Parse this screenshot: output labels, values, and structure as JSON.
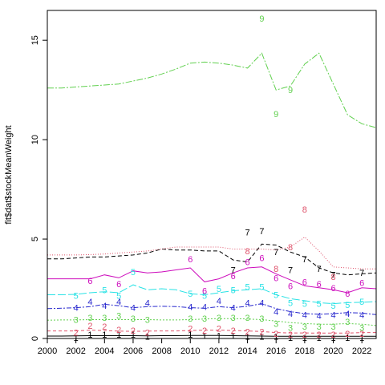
{
  "chart_data": {
    "type": "line",
    "title": "",
    "xlabel": "",
    "ylabel": "fit$dat$stockMeanWeight",
    "xlim": [
      2000,
      2023
    ],
    "ylim": [
      0,
      16.5
    ],
    "x_ticks": [
      2000,
      2002,
      2004,
      2006,
      2008,
      2010,
      2012,
      2014,
      2016,
      2018,
      2020,
      2022
    ],
    "x_tick_labels": [
      "2000",
      "2002",
      "2004",
      "2006",
      "2008",
      "2010",
      "2012",
      "2014",
      "2016",
      "2018",
      "2020",
      "2022"
    ],
    "y_ticks": [
      0,
      5,
      10,
      15
    ],
    "y_tick_labels": [
      "0",
      "5",
      "10",
      "15"
    ],
    "grid": false,
    "legend": "none",
    "years": [
      2000,
      2001,
      2002,
      2003,
      2004,
      2005,
      2006,
      2007,
      2008,
      2009,
      2010,
      2011,
      2012,
      2013,
      2014,
      2015,
      2016,
      2017,
      2018,
      2019,
      2020,
      2021,
      2022,
      2023
    ],
    "series": [
      {
        "color": "#000000",
        "dash": "",
        "values": [
          0.12,
          0.12,
          0.13,
          0.14,
          0.14,
          0.14,
          0.14,
          0.13,
          0.14,
          0.14,
          0.15,
          0.15,
          0.15,
          0.14,
          0.13,
          0.12,
          0.11,
          0.11,
          0.11,
          0.11,
          0.11,
          0.11,
          0.11,
          0.11
        ],
        "points": [
          {
            "label": "1",
            "x": 2002,
            "y": 0.05
          },
          {
            "label": "1",
            "x": 2003,
            "y": 0.2
          },
          {
            "label": "1",
            "x": 2004,
            "y": 0.2
          },
          {
            "label": "1",
            "x": 2005,
            "y": 0.2
          },
          {
            "label": "1",
            "x": 2006,
            "y": 0.2
          },
          {
            "label": "1",
            "x": 2007,
            "y": 0.1
          },
          {
            "label": "1",
            "x": 2010,
            "y": 0.2
          },
          {
            "label": "1",
            "x": 2011,
            "y": 0.15
          },
          {
            "label": "1",
            "x": 2012,
            "y": 0.15
          },
          {
            "label": "1",
            "x": 2013,
            "y": 0.15
          },
          {
            "label": "1",
            "x": 2014,
            "y": 0.1
          },
          {
            "label": "1",
            "x": 2015,
            "y": 0.1
          },
          {
            "label": "1",
            "x": 2016,
            "y": 0.1
          },
          {
            "label": "1",
            "x": 2017,
            "y": 0.05
          },
          {
            "label": "1",
            "x": 2018,
            "y": 0.05
          },
          {
            "label": "1",
            "x": 2019,
            "y": 0.05
          },
          {
            "label": "1",
            "x": 2020,
            "y": 0.05
          },
          {
            "label": "1",
            "x": 2021,
            "y": 0.05
          },
          {
            "label": "1",
            "x": 2022,
            "y": 0.05
          }
        ]
      },
      {
        "color": "#df536b",
        "dash": "4,3",
        "values": [
          0.38,
          0.38,
          0.38,
          0.42,
          0.4,
          0.37,
          0.36,
          0.37,
          0.38,
          0.38,
          0.4,
          0.42,
          0.42,
          0.4,
          0.38,
          0.35,
          0.3,
          0.28,
          0.28,
          0.27,
          0.27,
          0.27,
          0.3,
          0.3
        ],
        "points": [
          {
            "label": "2",
            "x": 2002,
            "y": 0.3
          },
          {
            "label": "2",
            "x": 2003,
            "y": 0.65
          },
          {
            "label": "2",
            "x": 2004,
            "y": 0.6
          },
          {
            "label": "2",
            "x": 2005,
            "y": 0.45
          },
          {
            "label": "2",
            "x": 2006,
            "y": 0.4
          },
          {
            "label": "2",
            "x": 2007,
            "y": 0.3
          },
          {
            "label": "2",
            "x": 2010,
            "y": 0.5
          },
          {
            "label": "2",
            "x": 2011,
            "y": 0.4
          },
          {
            "label": "2",
            "x": 2012,
            "y": 0.5
          },
          {
            "label": "2",
            "x": 2013,
            "y": 0.4
          },
          {
            "label": "2",
            "x": 2014,
            "y": 0.35
          },
          {
            "label": "2",
            "x": 2015,
            "y": 0.35
          },
          {
            "label": "2",
            "x": 2016,
            "y": 0.25
          },
          {
            "label": "2",
            "x": 2017,
            "y": 0.2
          },
          {
            "label": "2",
            "x": 2018,
            "y": 0.2
          },
          {
            "label": "2",
            "x": 2019,
            "y": 0.2
          },
          {
            "label": "2",
            "x": 2020,
            "y": 0.2
          },
          {
            "label": "2",
            "x": 2021,
            "y": 0.25
          },
          {
            "label": "2",
            "x": 2022,
            "y": 0.25
          }
        ]
      },
      {
        "color": "#61d04f",
        "dash": "2,2",
        "values": [
          0.92,
          0.93,
          0.93,
          0.95,
          0.95,
          0.95,
          0.95,
          0.95,
          0.93,
          0.93,
          0.95,
          0.98,
          1.0,
          1.0,
          0.98,
          0.95,
          0.88,
          0.8,
          0.75,
          0.72,
          0.72,
          0.75,
          0.72,
          0.65
        ],
        "points": [
          {
            "label": "3",
            "x": 2002,
            "y": 0.95
          },
          {
            "label": "3",
            "x": 2003,
            "y": 1.05
          },
          {
            "label": "3",
            "x": 2004,
            "y": 1.05
          },
          {
            "label": "3",
            "x": 2005,
            "y": 1.15
          },
          {
            "label": "3",
            "x": 2006,
            "y": 1.0
          },
          {
            "label": "3",
            "x": 2007,
            "y": 0.95
          },
          {
            "label": "3",
            "x": 2010,
            "y": 1.0
          },
          {
            "label": "3",
            "x": 2011,
            "y": 1.0
          },
          {
            "label": "3",
            "x": 2012,
            "y": 1.05
          },
          {
            "label": "3",
            "x": 2013,
            "y": 1.05
          },
          {
            "label": "3",
            "x": 2014,
            "y": 1.05
          },
          {
            "label": "3",
            "x": 2015,
            "y": 1.0
          },
          {
            "label": "3",
            "x": 2016,
            "y": 0.75
          },
          {
            "label": "3",
            "x": 2017,
            "y": 0.55
          },
          {
            "label": "3",
            "x": 2018,
            "y": 0.6
          },
          {
            "label": "3",
            "x": 2019,
            "y": 0.6
          },
          {
            "label": "3",
            "x": 2020,
            "y": 0.6
          },
          {
            "label": "3",
            "x": 2021,
            "y": 0.85
          },
          {
            "label": "3",
            "x": 2022,
            "y": 0.55
          }
        ]
      },
      {
        "color": "#2828ce",
        "dash": "6,2,2,2",
        "values": [
          1.5,
          1.52,
          1.55,
          1.6,
          1.72,
          1.65,
          1.55,
          1.6,
          1.62,
          1.6,
          1.55,
          1.52,
          1.6,
          1.55,
          1.62,
          1.75,
          1.5,
          1.35,
          1.25,
          1.22,
          1.25,
          1.3,
          1.28,
          1.2
        ],
        "points": [
          {
            "label": "4",
            "x": 2002,
            "y": 1.55
          },
          {
            "label": "4",
            "x": 2003,
            "y": 1.85
          },
          {
            "label": "4",
            "x": 2004,
            "y": 1.65
          },
          {
            "label": "4",
            "x": 2005,
            "y": 1.85
          },
          {
            "label": "4",
            "x": 2006,
            "y": 1.55
          },
          {
            "label": "4",
            "x": 2007,
            "y": 1.8
          },
          {
            "label": "4",
            "x": 2010,
            "y": 1.6
          },
          {
            "label": "4",
            "x": 2011,
            "y": 1.6
          },
          {
            "label": "4",
            "x": 2012,
            "y": 1.9
          },
          {
            "label": "4",
            "x": 2013,
            "y": 1.55
          },
          {
            "label": "4",
            "x": 2014,
            "y": 1.8
          },
          {
            "label": "4",
            "x": 2015,
            "y": 1.8
          },
          {
            "label": "4",
            "x": 2016,
            "y": 1.35
          },
          {
            "label": "4",
            "x": 2017,
            "y": 1.25
          },
          {
            "label": "4",
            "x": 2018,
            "y": 1.2
          },
          {
            "label": "4",
            "x": 2019,
            "y": 1.15
          },
          {
            "label": "4",
            "x": 2020,
            "y": 1.2
          },
          {
            "label": "4",
            "x": 2021,
            "y": 1.25
          },
          {
            "label": "4",
            "x": 2022,
            "y": 1.2
          }
        ]
      },
      {
        "color": "#28e2e5",
        "dash": "10,3",
        "values": [
          2.2,
          2.2,
          2.22,
          2.3,
          2.35,
          2.3,
          2.7,
          2.45,
          2.5,
          2.45,
          2.25,
          2.2,
          2.3,
          2.4,
          2.45,
          2.5,
          2.2,
          2.0,
          1.9,
          1.8,
          1.75,
          1.8,
          1.82,
          1.85
        ],
        "points": [
          {
            "label": "5",
            "x": 2002,
            "y": 2.15
          },
          {
            "label": "5",
            "x": 2004,
            "y": 2.45
          },
          {
            "label": "5",
            "x": 2005,
            "y": 2.15
          },
          {
            "label": "5",
            "x": 2006,
            "y": 3.35
          },
          {
            "label": "5",
            "x": 2010,
            "y": 2.25
          },
          {
            "label": "5",
            "x": 2011,
            "y": 2.15
          },
          {
            "label": "5",
            "x": 2012,
            "y": 2.5
          },
          {
            "label": "5",
            "x": 2013,
            "y": 2.45
          },
          {
            "label": "5",
            "x": 2014,
            "y": 2.6
          },
          {
            "label": "5",
            "x": 2015,
            "y": 2.6
          },
          {
            "label": "5",
            "x": 2016,
            "y": 2.2
          },
          {
            "label": "5",
            "x": 2017,
            "y": 1.8
          },
          {
            "label": "5",
            "x": 2018,
            "y": 1.75
          },
          {
            "label": "5",
            "x": 2019,
            "y": 1.75
          },
          {
            "label": "5",
            "x": 2020,
            "y": 1.65
          },
          {
            "label": "5",
            "x": 2021,
            "y": 1.7
          },
          {
            "label": "5",
            "x": 2022,
            "y": 1.85
          }
        ]
      },
      {
        "color": "#cd0bbc",
        "dash": "",
        "values": [
          3.0,
          3.0,
          3.0,
          3.0,
          3.2,
          3.05,
          3.4,
          3.3,
          3.35,
          3.45,
          3.55,
          2.85,
          3.0,
          3.3,
          3.55,
          3.6,
          3.25,
          2.95,
          2.65,
          2.55,
          2.45,
          2.3,
          2.55,
          2.5
        ],
        "points": [
          {
            "label": "6",
            "x": 2003,
            "y": 2.9
          },
          {
            "label": "6",
            "x": 2005,
            "y": 2.75
          },
          {
            "label": "6",
            "x": 2010,
            "y": 4.0
          },
          {
            "label": "6",
            "x": 2011,
            "y": 2.4
          },
          {
            "label": "6",
            "x": 2013,
            "y": 3.15
          },
          {
            "label": "6",
            "x": 2014,
            "y": 3.85
          },
          {
            "label": "6",
            "x": 2015,
            "y": 4.05
          },
          {
            "label": "6",
            "x": 2016,
            "y": 3.05
          },
          {
            "label": "6",
            "x": 2017,
            "y": 2.65
          },
          {
            "label": "6",
            "x": 2018,
            "y": 2.85
          },
          {
            "label": "6",
            "x": 2019,
            "y": 2.75
          },
          {
            "label": "6",
            "x": 2020,
            "y": 2.55
          },
          {
            "label": "6",
            "x": 2021,
            "y": 2.25
          },
          {
            "label": "6",
            "x": 2022,
            "y": 2.8
          }
        ]
      },
      {
        "color": "#000000",
        "dash": "5,3",
        "values": [
          4.0,
          4.0,
          4.05,
          4.1,
          4.1,
          4.15,
          4.2,
          4.3,
          4.5,
          4.45,
          4.45,
          4.4,
          4.4,
          3.95,
          3.85,
          4.75,
          4.7,
          4.35,
          4.1,
          3.55,
          3.3,
          3.2,
          3.25,
          3.3
        ],
        "points": [
          {
            "label": "7",
            "x": 2013,
            "y": 3.45
          },
          {
            "label": "7",
            "x": 2014,
            "y": 5.35
          },
          {
            "label": "7",
            "x": 2015,
            "y": 5.4
          },
          {
            "label": "7",
            "x": 2016,
            "y": 4.35
          },
          {
            "label": "7",
            "x": 2017,
            "y": 3.45
          },
          {
            "label": "7",
            "x": 2018,
            "y": 4.0
          },
          {
            "label": "7",
            "x": 2019,
            "y": 3.5
          },
          {
            "label": "7",
            "x": 2020,
            "y": 3.2
          },
          {
            "label": "7",
            "x": 2022,
            "y": 3.3
          }
        ]
      },
      {
        "color": "#df536b",
        "dash": "1,2",
        "values": [
          4.2,
          4.2,
          4.2,
          4.22,
          4.25,
          4.3,
          4.35,
          4.4,
          4.5,
          4.6,
          4.6,
          4.6,
          4.6,
          4.5,
          4.5,
          4.5,
          4.45,
          4.6,
          5.1,
          4.4,
          3.6,
          3.55,
          3.5,
          3.5
        ],
        "points": [
          {
            "label": "8",
            "x": 2014,
            "y": 4.4
          },
          {
            "label": "8",
            "x": 2016,
            "y": 3.5
          },
          {
            "label": "8",
            "x": 2017,
            "y": 4.6
          },
          {
            "label": "8",
            "x": 2018,
            "y": 6.5
          },
          {
            "label": "8",
            "x": 2020,
            "y": 3.1
          }
        ]
      },
      {
        "color": "#61d04f",
        "dash": "8,2,2,2",
        "values": [
          12.6,
          12.6,
          12.65,
          12.7,
          12.75,
          12.8,
          12.95,
          13.1,
          13.3,
          13.55,
          13.85,
          13.9,
          13.85,
          13.75,
          13.6,
          14.35,
          12.5,
          12.7,
          13.8,
          14.35,
          12.8,
          11.25,
          10.8,
          10.6
        ],
        "points": [
          {
            "label": "9",
            "x": 2015,
            "y": 16.1
          },
          {
            "label": "9",
            "x": 2016,
            "y": 11.3
          },
          {
            "label": "9",
            "x": 2017,
            "y": 12.5
          }
        ]
      }
    ]
  }
}
